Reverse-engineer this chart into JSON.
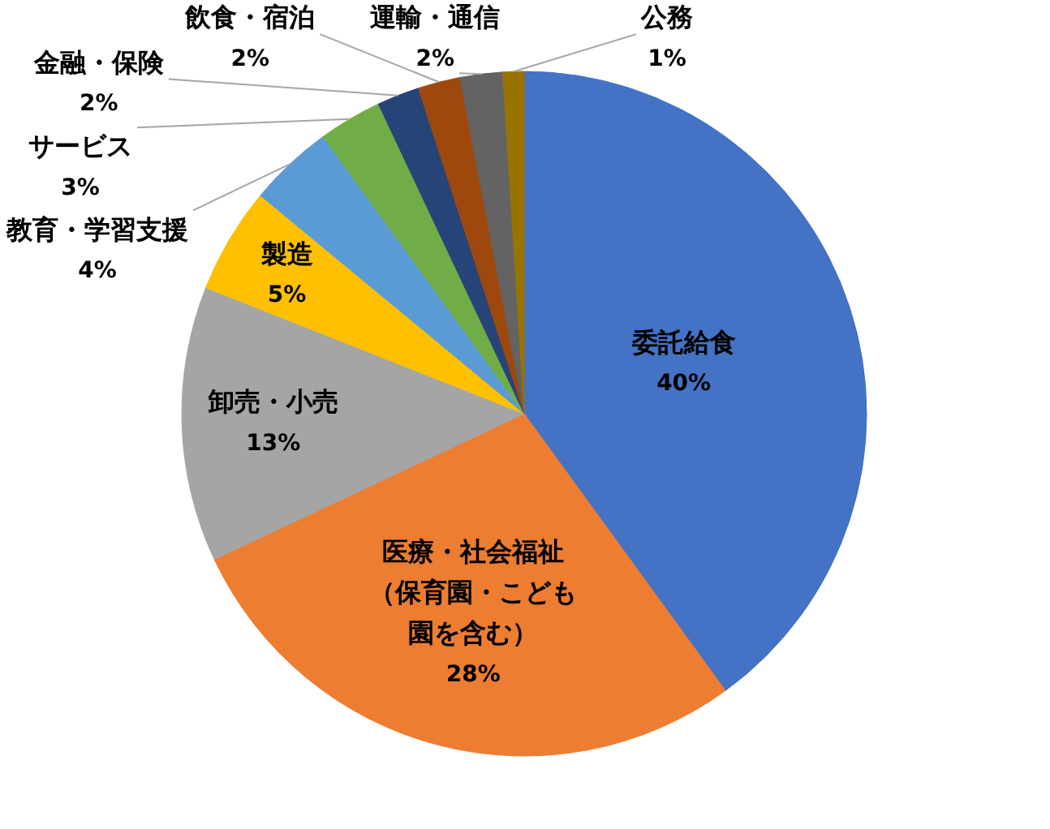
{
  "chart_data": {
    "type": "pie",
    "categories": [
      "委託給食",
      "医療・社会福祉（保育園・こども園を含む）",
      "卸売・小売",
      "製造",
      "教育・学習支援",
      "サービス",
      "金融・保険",
      "飲食・宿泊",
      "運輸・通信",
      "公務"
    ],
    "values": [
      40,
      28,
      13,
      5,
      4,
      3,
      2,
      2,
      2,
      1
    ],
    "colors": [
      "#4472c4",
      "#ed7d31",
      "#a5a5a5",
      "#ffc000",
      "#5b9bd5",
      "#70ad47",
      "#264478",
      "#9e480e",
      "#636363",
      "#997300"
    ],
    "value_labels": [
      "40%",
      "28%",
      "13%",
      "5%",
      "4%",
      "3%",
      "2%",
      "2%",
      "2%",
      "1%"
    ]
  }
}
